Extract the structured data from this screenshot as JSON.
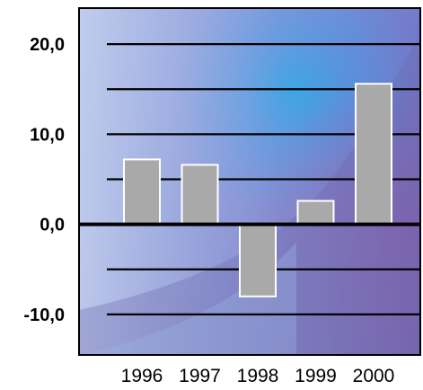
{
  "chart_data": {
    "type": "bar",
    "categories": [
      "1996",
      "1997",
      "1998",
      "1999",
      "2000"
    ],
    "values": [
      7.2,
      6.6,
      -8.0,
      2.6,
      15.6
    ],
    "title": "",
    "xlabel": "",
    "ylabel": "",
    "ylim": [
      -14.5,
      24.0
    ],
    "yticks": [
      20,
      10,
      0,
      -10
    ],
    "ytick_labels": [
      "20,0",
      "10,0",
      "0,0",
      "-10,0"
    ],
    "gridlines": [
      20,
      15,
      10,
      5,
      -5,
      -10
    ],
    "grid": true,
    "legend": "none",
    "bar_color": "#a9a9a9",
    "bar_edge_color": "#ffffff",
    "zero_line_color": "#000000",
    "background_colors": [
      "#7d8ed6",
      "#3b9bd8",
      "#8a72b8",
      "#c6d6ef"
    ]
  }
}
